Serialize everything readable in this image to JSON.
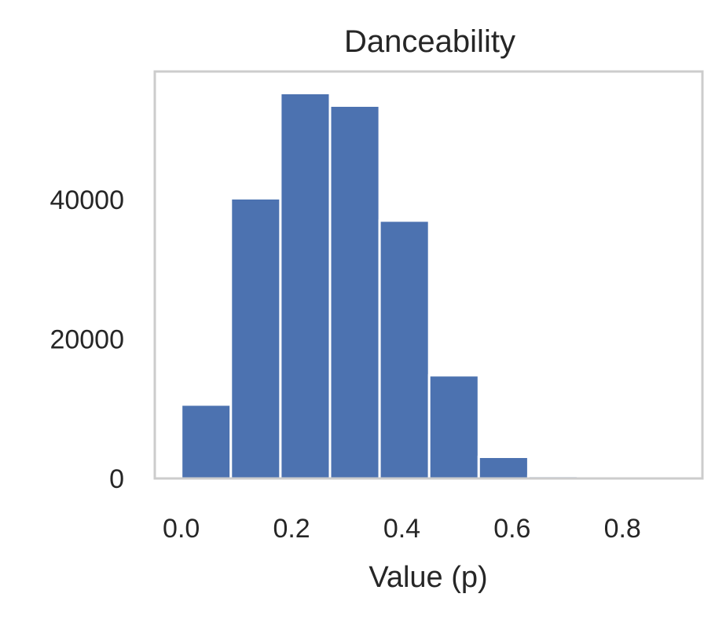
{
  "chart_data": {
    "type": "bar",
    "title": "Danceability",
    "xlabel": "Value (p)",
    "ylabel": "",
    "bin_edges": [
      0.0,
      0.0899,
      0.1798,
      0.2697,
      0.3596,
      0.4495,
      0.5394,
      0.6293,
      0.7192,
      0.8091,
      0.899
    ],
    "values": [
      10600,
      40200,
      55300,
      53500,
      37000,
      14800,
      3100,
      350,
      30,
      5
    ],
    "xlim": [
      -0.048,
      0.945
    ],
    "ylim": [
      0,
      58400
    ],
    "xticks": [
      "0.0",
      "0.2",
      "0.4",
      "0.6",
      "0.8"
    ],
    "xtick_values": [
      0.0,
      0.2,
      0.4,
      0.6,
      0.8
    ],
    "yticks": [
      "0",
      "20000",
      "40000"
    ],
    "ytick_values": [
      0,
      20000,
      40000
    ],
    "grid": false,
    "bar_color": "#4c72b0",
    "frame_color": "#cccccc"
  }
}
